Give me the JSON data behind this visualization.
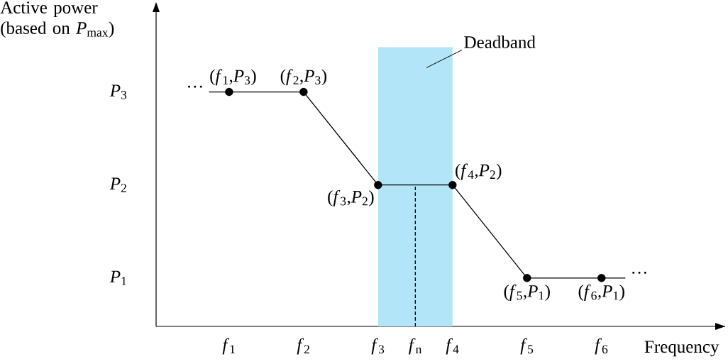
{
  "chart_data": {
    "type": "line",
    "xlabel": "Frequency",
    "ylabel": "Active power (based on *P*$_{max}$)",
    "xlim": [
      0.02,
      7.66
    ],
    "ylim": [
      0.48,
      3.95
    ],
    "xticks": [
      {
        "value": 1,
        "label": "*f*$_{1}$"
      },
      {
        "value": 2,
        "label": "*f*$_{2}$"
      },
      {
        "value": 3,
        "label": "*f*$_{3}$"
      },
      {
        "value": 3.5,
        "label": "*f*$_{n}$"
      },
      {
        "value": 4,
        "label": "*f*$_{4}$"
      },
      {
        "value": 5,
        "label": "*f*$_{5}$"
      },
      {
        "value": 6,
        "label": "*f*$_{6}$"
      }
    ],
    "yticks": [
      {
        "value": 1,
        "label": "*P*$_{1}$"
      },
      {
        "value": 2,
        "label": "*P*$_{2}$"
      },
      {
        "value": 3,
        "label": "*P*$_{3}$"
      }
    ],
    "series": [
      {
        "type": "area",
        "name": "Deadband",
        "color": "#b3e5f8",
        "x": [
          3,
          4
        ],
        "values": [
          3.48,
          3.48
        ]
      },
      {
        "color": "#000000",
        "line_style": "dashed",
        "marker": "none",
        "x": [
          3.5,
          3.5
        ],
        "values": [
          0.48,
          2
        ]
      },
      {
        "color": "#000000",
        "marker": "none",
        "x": [
          0.73,
          1,
          2,
          3,
          4,
          5,
          6,
          6.32
        ],
        "values": [
          3,
          3,
          3,
          2,
          2,
          1,
          1,
          1
        ]
      },
      {
        "type": "scatter",
        "color": "#000000",
        "marker": "circle",
        "x": [
          1,
          2,
          3,
          4,
          5,
          6
        ],
        "values": [
          3,
          3,
          2,
          2,
          1,
          1
        ]
      }
    ],
    "annotations": [
      {
        "text": "(*f*$_{1}$,*P*$_{3}$)",
        "x": 1,
        "y": 3
      },
      {
        "text": "(*f*$_{2}$,*P*$_{3}$)",
        "x": 2,
        "y": 3
      },
      {
        "text": "(*f*$_{3}$,*P*$_{2}$)",
        "x": 3,
        "y": 2
      },
      {
        "text": "(*f*$_{4}$,*P*$_{2}$)",
        "x": 4,
        "y": 2
      },
      {
        "text": "(*f*$_{5}$,*P*$_{1}$)",
        "x": 5,
        "y": 1
      },
      {
        "text": "(*f*$_{6}$,*P*$_{1}$)",
        "x": 6,
        "y": 1
      },
      "···",
      "···"
    ]
  }
}
